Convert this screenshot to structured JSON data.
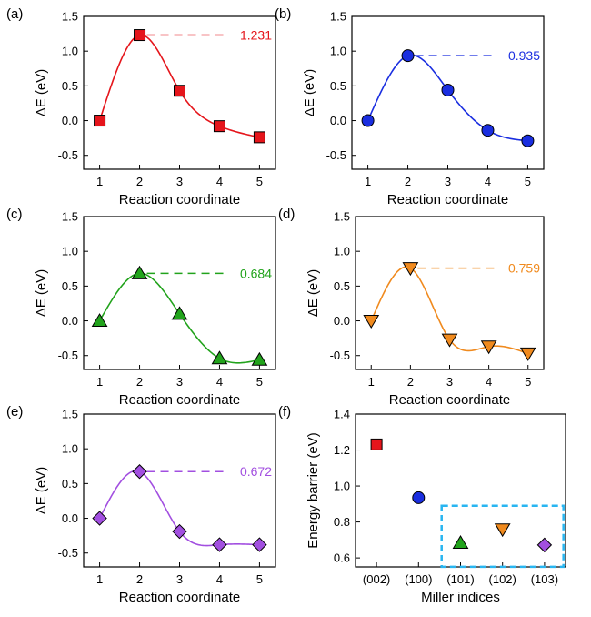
{
  "chart_data": [
    {
      "panel": "(a)",
      "type": "line",
      "x": [
        1,
        2,
        3,
        4,
        5
      ],
      "y": [
        0.0,
        1.231,
        0.43,
        -0.08,
        -0.24
      ],
      "barrier_label": "1.231",
      "barrier_x": 2,
      "color": "#e5151b",
      "line_color": "#e5151b",
      "marker": "square",
      "xlabel": "Reaction coordinate",
      "ylabel": "ΔE (eV)",
      "xlim": [
        0.6,
        5.4
      ],
      "ylim": [
        -0.7,
        1.5
      ],
      "xticks": [
        1,
        2,
        3,
        4,
        5
      ],
      "yticks": [
        -0.5,
        0.0,
        0.5,
        1.0,
        1.5
      ]
    },
    {
      "panel": "(b)",
      "type": "line",
      "x": [
        1,
        2,
        3,
        4,
        5
      ],
      "y": [
        0.0,
        0.935,
        0.44,
        -0.14,
        -0.29
      ],
      "barrier_label": "0.935",
      "barrier_x": 2,
      "color": "#1a2ee0",
      "line_color": "#1a2ee0",
      "marker": "circle",
      "xlabel": "Reaction coordinate",
      "ylabel": "ΔE (eV)",
      "xlim": [
        0.6,
        5.4
      ],
      "ylim": [
        -0.7,
        1.5
      ],
      "xticks": [
        1,
        2,
        3,
        4,
        5
      ],
      "yticks": [
        -0.5,
        0.0,
        0.5,
        1.0,
        1.5
      ]
    },
    {
      "panel": "(c)",
      "type": "line",
      "x": [
        1,
        2,
        3,
        4,
        5
      ],
      "y": [
        0.0,
        0.684,
        0.1,
        -0.54,
        -0.56
      ],
      "barrier_label": "0.684",
      "barrier_x": 2,
      "color": "#22a31c",
      "line_color": "#22a31c",
      "marker": "triangle-up",
      "xlabel": "Reaction coordinate",
      "ylabel": "ΔE (eV)",
      "xlim": [
        0.6,
        5.4
      ],
      "ylim": [
        -0.7,
        1.5
      ],
      "xticks": [
        1,
        2,
        3,
        4,
        5
      ],
      "yticks": [
        -0.5,
        0.0,
        0.5,
        1.0,
        1.5
      ]
    },
    {
      "panel": "(d)",
      "type": "line",
      "x": [
        1,
        2,
        3,
        4,
        5
      ],
      "y": [
        0.0,
        0.759,
        -0.27,
        -0.37,
        -0.47
      ],
      "barrier_label": "0.759",
      "barrier_x": 2,
      "color": "#f08a1e",
      "line_color": "#f08a1e",
      "marker": "triangle-down",
      "xlabel": "Reaction coordinate",
      "ylabel": "ΔE (eV)",
      "xlim": [
        0.6,
        5.4
      ],
      "ylim": [
        -0.7,
        1.5
      ],
      "xticks": [
        1,
        2,
        3,
        4,
        5
      ],
      "yticks": [
        -0.5,
        0.0,
        0.5,
        1.0,
        1.5
      ]
    },
    {
      "panel": "(e)",
      "type": "line",
      "x": [
        1,
        2,
        3,
        4,
        5
      ],
      "y": [
        0.0,
        0.672,
        -0.19,
        -0.38,
        -0.38
      ],
      "barrier_label": "0.672",
      "barrier_x": 2,
      "color": "#a24fe0",
      "line_color": "#a24fe0",
      "marker": "diamond",
      "xlabel": "Reaction coordinate",
      "ylabel": "ΔE (eV)",
      "xlim": [
        0.6,
        5.4
      ],
      "ylim": [
        -0.7,
        1.5
      ],
      "xticks": [
        1,
        2,
        3,
        4,
        5
      ],
      "yticks": [
        -0.5,
        0.0,
        0.5,
        1.0,
        1.5
      ]
    },
    {
      "panel": "(f)",
      "type": "scatter",
      "categories": [
        "(002)",
        "(100)",
        "(101)",
        "(102)",
        "(103)"
      ],
      "values": [
        1.231,
        0.935,
        0.684,
        0.759,
        0.672
      ],
      "markers": [
        "square",
        "circle",
        "triangle-up",
        "triangle-down",
        "diamond"
      ],
      "colors": [
        "#e5151b",
        "#1a2ee0",
        "#22a31c",
        "#f08a1e",
        "#a24fe0"
      ],
      "highlight_box": [
        "(101)",
        "(103)"
      ],
      "highlight_color": "#29b5f0",
      "xlabel": "Miller indices",
      "ylabel": "Energy barrier (eV)",
      "ylim": [
        0.55,
        1.4
      ],
      "yticks": [
        0.6,
        0.8,
        1.0,
        1.2,
        1.4
      ]
    }
  ]
}
